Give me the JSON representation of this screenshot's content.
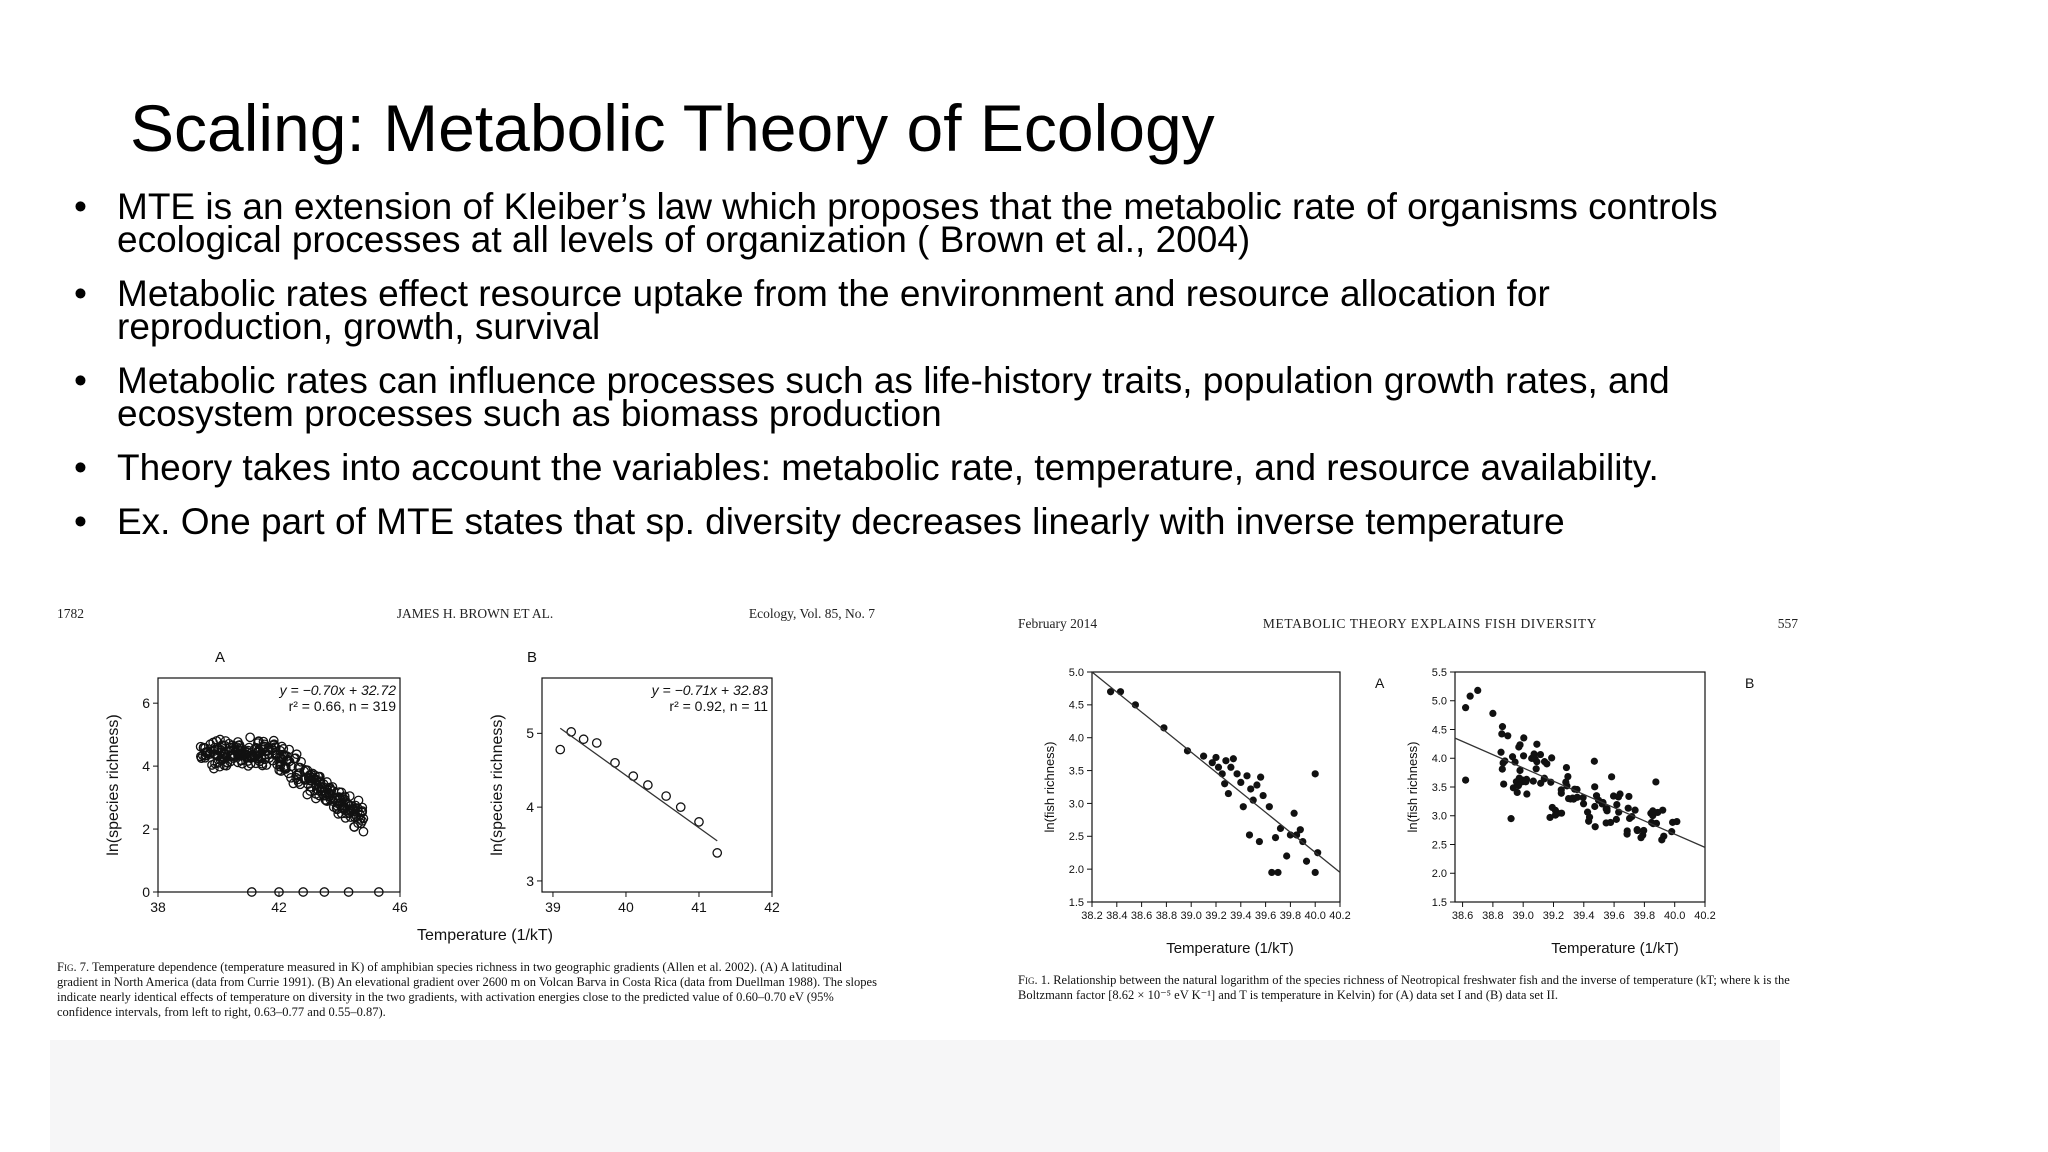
{
  "slide": {
    "title": "Scaling: Metabolic Theory of Ecology",
    "bullets": [
      {
        "line1": "MTE is an extension of Kleiber’s law which proposes that the metabolic rate of organisms controls",
        "line2": "ecological processes at all levels of organization ( Brown et al., 2004)"
      },
      {
        "line1": "Metabolic rates effect resource uptake from the environment and resource allocation for",
        "line2": "reproduction, growth, survival"
      },
      {
        "line1": "Metabolic rates can influence processes such as life-history traits, population growth rates, and",
        "line2": "ecosystem processes such as biomass production"
      },
      {
        "line1": "Theory takes into account the variables: metabolic rate, temperature, and resource availability.",
        "line2": ""
      },
      {
        "line1": "Ex. One part of MTE states that sp. diversity decreases linearly with inverse temperature",
        "line2": ""
      }
    ],
    "bullet_char": "•"
  },
  "figure_left": {
    "page_num": "1782",
    "authors": "JAMES H. BROWN ET AL.",
    "journal": "Ecology, Vol. 85, No. 7",
    "xlabel": "Temperature (1/kT)",
    "caption_lead": "Fig. 7.",
    "caption": "Temperature dependence (temperature measured in K) of amphibian species richness in two geographic gradients (Allen et al. 2002). (A) A latitudinal gradient in North America (data from Currie 1991). (B) An elevational gradient over 2600 m on Volcan Barva in Costa Rica (data from Duellman 1988). The slopes indicate nearly identical effects of temperature on diversity in the two gradients, with activation energies close to the predicted value of 0.60–0.70 eV (95% confidence intervals, from left to right, 0.63–0.77 and 0.55–0.87)."
  },
  "figure_right": {
    "date": "February 2014",
    "running_title": "METABOLIC THEORY EXPLAINS FISH DIVERSITY",
    "page_num": "557",
    "xlabel": "Temperature (1/kT)",
    "caption_lead": "Fig. 1.",
    "caption": "Relationship between the natural logarithm of the species richness of Neotropical freshwater fish and the inverse of temperature (kT; where k is the Boltzmann factor [8.62 × 10⁻⁵ eV K⁻¹] and T is temperature in Kelvin) for (A) data set I and (B) data set II."
  },
  "chart_data": [
    {
      "type": "scatter",
      "panel": "A",
      "ylabel": "ln(species richness)",
      "xlim": [
        38,
        46
      ],
      "ylim": [
        0,
        6.8
      ],
      "xticks": [
        38,
        42,
        46
      ],
      "yticks": [
        0,
        2,
        4,
        6
      ],
      "equation": "y = −0.70x + 32.72",
      "stats": "r² = 0.66, n = 319",
      "marker": "open",
      "fit": {
        "slope": -0.7,
        "intercept": 32.72,
        "x0": 39.5,
        "x1": 45,
        "draw": false
      },
      "cloud": {
        "n": 319,
        "x0": 39.4,
        "x1": 44.8,
        "seed": 7
      },
      "outliers": [
        [
          42.0,
          0.0
        ],
        [
          42.8,
          0.0
        ],
        [
          43.5,
          0.0
        ],
        [
          44.3,
          0.0
        ],
        [
          45.3,
          0.0
        ],
        [
          41.1,
          0.0
        ]
      ]
    },
    {
      "type": "scatter",
      "panel": "B",
      "ylabel": "ln(species richness)",
      "xlim": [
        38.85,
        42.0
      ],
      "ylim": [
        2.85,
        5.75
      ],
      "xticks": [
        39,
        40,
        41,
        42
      ],
      "yticks": [
        3,
        4,
        5
      ],
      "equation": "y = −0.71x + 32.83",
      "stats": "r² = 0.92, n = 11",
      "marker": "open",
      "fit": {
        "slope": -0.71,
        "intercept": 32.83,
        "x0": 39.1,
        "x1": 41.25,
        "draw": true
      },
      "points": [
        [
          39.1,
          4.78
        ],
        [
          39.25,
          5.02
        ],
        [
          39.42,
          4.92
        ],
        [
          39.6,
          4.87
        ],
        [
          39.85,
          4.6
        ],
        [
          40.1,
          4.42
        ],
        [
          40.3,
          4.3
        ],
        [
          40.55,
          4.15
        ],
        [
          40.75,
          4.0
        ],
        [
          41.0,
          3.8
        ],
        [
          41.25,
          3.38
        ]
      ]
    },
    {
      "type": "scatter",
      "panel": "A",
      "ylabel": "ln(fish richness)",
      "xlim": [
        38.2,
        40.2
      ],
      "ylim": [
        1.5,
        5.0
      ],
      "xticks": [
        38.2,
        38.4,
        38.6,
        38.8,
        39.0,
        39.2,
        39.4,
        39.6,
        39.8,
        40.0,
        40.2
      ],
      "yticks": [
        1.5,
        2.0,
        2.5,
        3.0,
        3.5,
        4.0,
        4.5,
        5.0
      ],
      "marker": "filled",
      "fit": {
        "x0": 38.2,
        "y0": 5.0,
        "x1": 40.2,
        "y1": 1.95,
        "draw": true
      },
      "points": [
        [
          38.35,
          4.7
        ],
        [
          38.43,
          4.7
        ],
        [
          38.55,
          4.5
        ],
        [
          38.78,
          4.15
        ],
        [
          38.97,
          3.8
        ],
        [
          39.1,
          3.72
        ],
        [
          39.17,
          3.62
        ],
        [
          39.2,
          3.7
        ],
        [
          39.22,
          3.55
        ],
        [
          39.25,
          3.45
        ],
        [
          39.28,
          3.65
        ],
        [
          39.32,
          3.55
        ],
        [
          39.34,
          3.68
        ],
        [
          39.37,
          3.45
        ],
        [
          39.4,
          3.32
        ],
        [
          39.27,
          3.3
        ],
        [
          39.3,
          3.15
        ],
        [
          39.45,
          3.42
        ],
        [
          39.48,
          3.22
        ],
        [
          39.5,
          3.05
        ],
        [
          39.53,
          3.28
        ],
        [
          39.56,
          3.4
        ],
        [
          39.58,
          3.12
        ],
        [
          39.42,
          2.95
        ],
        [
          39.47,
          2.52
        ],
        [
          39.55,
          2.42
        ],
        [
          39.63,
          2.95
        ],
        [
          39.68,
          2.48
        ],
        [
          39.72,
          2.62
        ],
        [
          39.77,
          2.2
        ],
        [
          39.8,
          2.52
        ],
        [
          39.83,
          2.85
        ],
        [
          39.85,
          2.52
        ],
        [
          39.9,
          2.42
        ],
        [
          39.93,
          2.12
        ],
        [
          39.65,
          1.95
        ],
        [
          39.7,
          1.95
        ],
        [
          40.0,
          3.45
        ],
        [
          40.02,
          2.25
        ],
        [
          40.0,
          1.95
        ],
        [
          39.88,
          2.6
        ]
      ]
    },
    {
      "type": "scatter",
      "panel": "B",
      "ylabel": "ln(fish richness)",
      "xlim": [
        38.55,
        40.2
      ],
      "ylim": [
        1.5,
        5.5
      ],
      "xticks": [
        38.6,
        38.8,
        39.0,
        39.2,
        39.4,
        39.6,
        39.8,
        40.0,
        40.2
      ],
      "yticks": [
        1.5,
        2.0,
        2.5,
        3.0,
        3.5,
        4.0,
        4.5,
        5.0,
        5.5
      ],
      "marker": "filled",
      "fit": {
        "x0": 38.55,
        "y0": 4.35,
        "x1": 40.2,
        "y1": 2.45,
        "draw": true
      },
      "cloud": {
        "n": 110,
        "x0": 38.85,
        "x1": 40.05,
        "slope": -1.15,
        "at": 39.45,
        "mean": 3.3,
        "spread": 0.62,
        "ymin": 1.9,
        "ymax": 4.55,
        "seed": 23
      },
      "points": [
        [
          38.62,
          4.88
        ],
        [
          38.65,
          5.08
        ],
        [
          38.7,
          5.18
        ],
        [
          38.8,
          4.78
        ],
        [
          38.62,
          3.62
        ],
        [
          38.92,
          2.95
        ]
      ]
    }
  ]
}
